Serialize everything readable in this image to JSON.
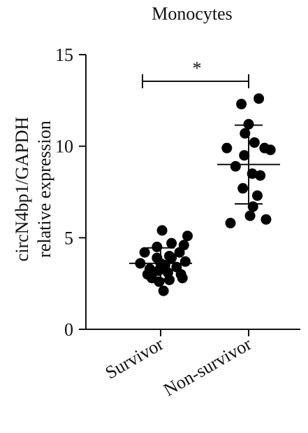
{
  "chart_data": {
    "type": "scatter",
    "title": "Monocytes",
    "ylabel_lines": [
      "circN4bp1/GAPDH",
      "relative expression"
    ],
    "xlabel": "",
    "categories": [
      "Survivor",
      "Non-survivor"
    ],
    "ylim": [
      0,
      15
    ],
    "yticks": [
      0,
      5,
      10,
      15
    ],
    "grid": false,
    "legend": "none",
    "significance": {
      "label": "*",
      "between": [
        "Survivor",
        "Non-survivor"
      ]
    },
    "point_color": "#000000",
    "series": [
      {
        "category": "Survivor",
        "mean": 3.6,
        "sd": 0.85,
        "points": [
          {
            "offset": -0.28,
            "y": 3.6
          },
          {
            "offset": -0.22,
            "y": 4.2
          },
          {
            "offset": -0.18,
            "y": 3.0
          },
          {
            "offset": -0.15,
            "y": 3.3
          },
          {
            "offset": -0.12,
            "y": 2.8
          },
          {
            "offset": -0.05,
            "y": 4.5
          },
          {
            "offset": -0.05,
            "y": 3.9
          },
          {
            "offset": -0.03,
            "y": 3.2
          },
          {
            "offset": -0.02,
            "y": 2.6
          },
          {
            "offset": 0.0,
            "y": 3.6
          },
          {
            "offset": 0.02,
            "y": 5.4
          },
          {
            "offset": 0.04,
            "y": 2.1
          },
          {
            "offset": 0.06,
            "y": 3.5
          },
          {
            "offset": 0.1,
            "y": 3.1
          },
          {
            "offset": 0.12,
            "y": 4.0
          },
          {
            "offset": 0.12,
            "y": 2.7
          },
          {
            "offset": 0.15,
            "y": 3.9
          },
          {
            "offset": 0.15,
            "y": 4.7
          },
          {
            "offset": 0.22,
            "y": 3.4
          },
          {
            "offset": 0.26,
            "y": 4.2
          },
          {
            "offset": 0.28,
            "y": 3.0
          },
          {
            "offset": 0.3,
            "y": 2.8
          },
          {
            "offset": 0.32,
            "y": 4.6
          },
          {
            "offset": 0.34,
            "y": 3.7
          },
          {
            "offset": 0.37,
            "y": 5.1
          }
        ]
      },
      {
        "category": "Non-survivor",
        "mean": 9.0,
        "sd": 2.15,
        "points": [
          {
            "offset": -0.3,
            "y": 9.9
          },
          {
            "offset": -0.25,
            "y": 5.8
          },
          {
            "offset": -0.18,
            "y": 8.9
          },
          {
            "offset": -0.1,
            "y": 12.3
          },
          {
            "offset": -0.08,
            "y": 7.7
          },
          {
            "offset": -0.06,
            "y": 9.5
          },
          {
            "offset": -0.05,
            "y": 10.7
          },
          {
            "offset": 0.0,
            "y": 11.2
          },
          {
            "offset": 0.02,
            "y": 6.2
          },
          {
            "offset": 0.05,
            "y": 8.5
          },
          {
            "offset": 0.06,
            "y": 6.7
          },
          {
            "offset": 0.08,
            "y": 10.2
          },
          {
            "offset": 0.12,
            "y": 7.3
          },
          {
            "offset": 0.14,
            "y": 12.6
          },
          {
            "offset": 0.16,
            "y": 8.4
          },
          {
            "offset": 0.22,
            "y": 9.9
          },
          {
            "offset": 0.24,
            "y": 6.0
          },
          {
            "offset": 0.3,
            "y": 9.8
          }
        ]
      }
    ]
  }
}
